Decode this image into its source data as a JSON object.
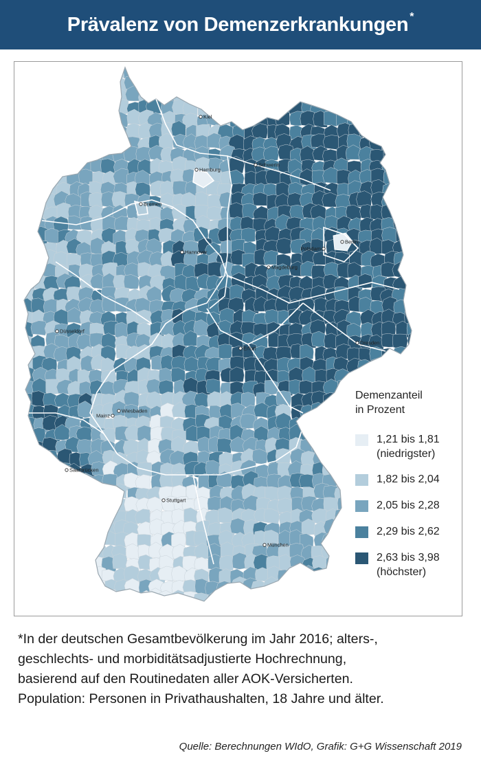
{
  "header": {
    "title": "Prävalenz von Demenzerkrankungen",
    "title_mark": "*"
  },
  "map": {
    "cities": [
      "Kiel",
      "Hamburg",
      "Schwerin",
      "Bremen",
      "Berlin",
      "Potsdam",
      "Hannover",
      "Magdeburg",
      "Düsseldorf",
      "Erfurt",
      "Dresden",
      "Wiesbaden",
      "Mainz",
      "Saarbrücken",
      "Stuttgart",
      "München"
    ],
    "colors": {
      "c1": "#e6eef4",
      "c2": "#b3cddc",
      "c3": "#79a5be",
      "c4": "#4b819e",
      "c5": "#2b5774",
      "border": "#ffffff",
      "background": "#ffffff"
    }
  },
  "legend": {
    "title_line1": "Demenzanteil",
    "title_line2": "in Prozent",
    "items": [
      {
        "label": "1,21 bis 1,81",
        "sub": "(niedrigster)",
        "color": "#e6eef4"
      },
      {
        "label": "1,82 bis 2,04",
        "sub": "",
        "color": "#b3cddc"
      },
      {
        "label": "2,05 bis 2,28",
        "sub": "",
        "color": "#79a5be"
      },
      {
        "label": "2,29 bis 2,62",
        "sub": "",
        "color": "#4b819e"
      },
      {
        "label": "2,63 bis 3,98",
        "sub": "(höchster)",
        "color": "#2b5774"
      }
    ]
  },
  "footnote": {
    "line1": "*In der deutschen Gesamtbevölkerung im Jahr 2016; alters-,",
    "line2": "geschlechts- und morbiditätsadjustierte Hochrechnung,",
    "line3": "basierend auf den Routinedaten aller AOK-Versicherten.",
    "line4": "Population: Personen in Privathaushalten, 18 Jahre und älter."
  },
  "source": "Quelle: Berechnungen WIdO, Grafik: G+G Wissenschaft 2019"
}
